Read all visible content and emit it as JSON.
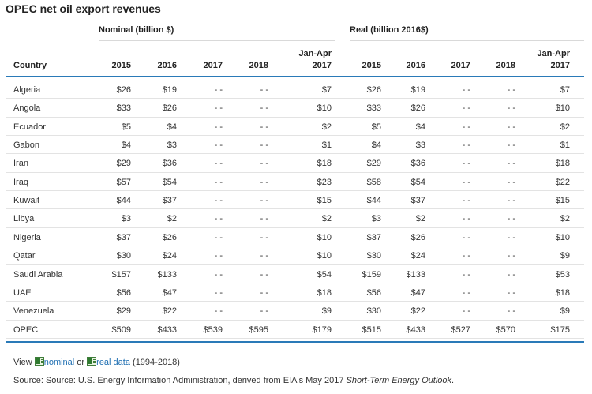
{
  "title": "OPEC net oil export revenues",
  "groups": {
    "nominal": "Nominal (billion $)",
    "real": "Real (billion 2016$)"
  },
  "columns": {
    "country": "Country",
    "y2015": "2015",
    "y2016": "2016",
    "y2017": "2017",
    "y2018": "2018",
    "janapr_line1": "Jan-Apr",
    "janapr_line2": "2017"
  },
  "rows": [
    {
      "country": "Algeria",
      "nominal": [
        "$26",
        "$19",
        "- -",
        "- -",
        "$7"
      ],
      "real": [
        "$26",
        "$19",
        "- -",
        "- -",
        "$7"
      ]
    },
    {
      "country": "Angola",
      "nominal": [
        "$33",
        "$26",
        "- -",
        "- -",
        "$10"
      ],
      "real": [
        "$33",
        "$26",
        "- -",
        "- -",
        "$10"
      ]
    },
    {
      "country": "Ecuador",
      "nominal": [
        "$5",
        "$4",
        "- -",
        "- -",
        "$2"
      ],
      "real": [
        "$5",
        "$4",
        "- -",
        "- -",
        "$2"
      ]
    },
    {
      "country": "Gabon",
      "nominal": [
        "$4",
        "$3",
        "- -",
        "- -",
        "$1"
      ],
      "real": [
        "$4",
        "$3",
        "- -",
        "- -",
        "$1"
      ]
    },
    {
      "country": "Iran",
      "nominal": [
        "$29",
        "$36",
        "- -",
        "- -",
        "$18"
      ],
      "real": [
        "$29",
        "$36",
        "- -",
        "- -",
        "$18"
      ]
    },
    {
      "country": "Iraq",
      "nominal": [
        "$57",
        "$54",
        "- -",
        "- -",
        "$23"
      ],
      "real": [
        "$58",
        "$54",
        "- -",
        "- -",
        "$22"
      ]
    },
    {
      "country": "Kuwait",
      "nominal": [
        "$44",
        "$37",
        "- -",
        "- -",
        "$15"
      ],
      "real": [
        "$44",
        "$37",
        "- -",
        "- -",
        "$15"
      ]
    },
    {
      "country": "Libya",
      "nominal": [
        "$3",
        "$2",
        "- -",
        "- -",
        "$2"
      ],
      "real": [
        "$3",
        "$2",
        "- -",
        "- -",
        "$2"
      ]
    },
    {
      "country": "Nigeria",
      "nominal": [
        "$37",
        "$26",
        "- -",
        "- -",
        "$10"
      ],
      "real": [
        "$37",
        "$26",
        "- -",
        "- -",
        "$10"
      ]
    },
    {
      "country": "Qatar",
      "nominal": [
        "$30",
        "$24",
        "- -",
        "- -",
        "$10"
      ],
      "real": [
        "$30",
        "$24",
        "- -",
        "- -",
        "$9"
      ]
    },
    {
      "country": "Saudi Arabia",
      "nominal": [
        "$157",
        "$133",
        "- -",
        "- -",
        "$54"
      ],
      "real": [
        "$159",
        "$133",
        "- -",
        "- -",
        "$53"
      ]
    },
    {
      "country": "UAE",
      "nominal": [
        "$56",
        "$47",
        "- -",
        "- -",
        "$18"
      ],
      "real": [
        "$56",
        "$47",
        "- -",
        "- -",
        "$18"
      ]
    },
    {
      "country": "Venezuela",
      "nominal": [
        "$29",
        "$22",
        "- -",
        "- -",
        "$9"
      ],
      "real": [
        "$30",
        "$22",
        "- -",
        "- -",
        "$9"
      ]
    },
    {
      "country": "OPEC",
      "nominal": [
        "$509",
        "$433",
        "$539",
        "$595",
        "$179"
      ],
      "real": [
        "$515",
        "$433",
        "$527",
        "$570",
        "$175"
      ]
    }
  ],
  "footer": {
    "view_prefix": "View",
    "nominal_link": "nominal",
    "or_text": "or",
    "real_link": "real data",
    "range_text": "(1994-2018)",
    "source_prefix": "Source: Source: U.S. Energy Information Administration, derived from EIA's May 2017",
    "source_title": "Short-Term Energy Outlook",
    "source_suffix": "."
  },
  "icons": {
    "download": "spreadsheet-icon"
  },
  "colors": {
    "accent_rule": "#2a7ab8",
    "link": "#1f6fb2"
  }
}
